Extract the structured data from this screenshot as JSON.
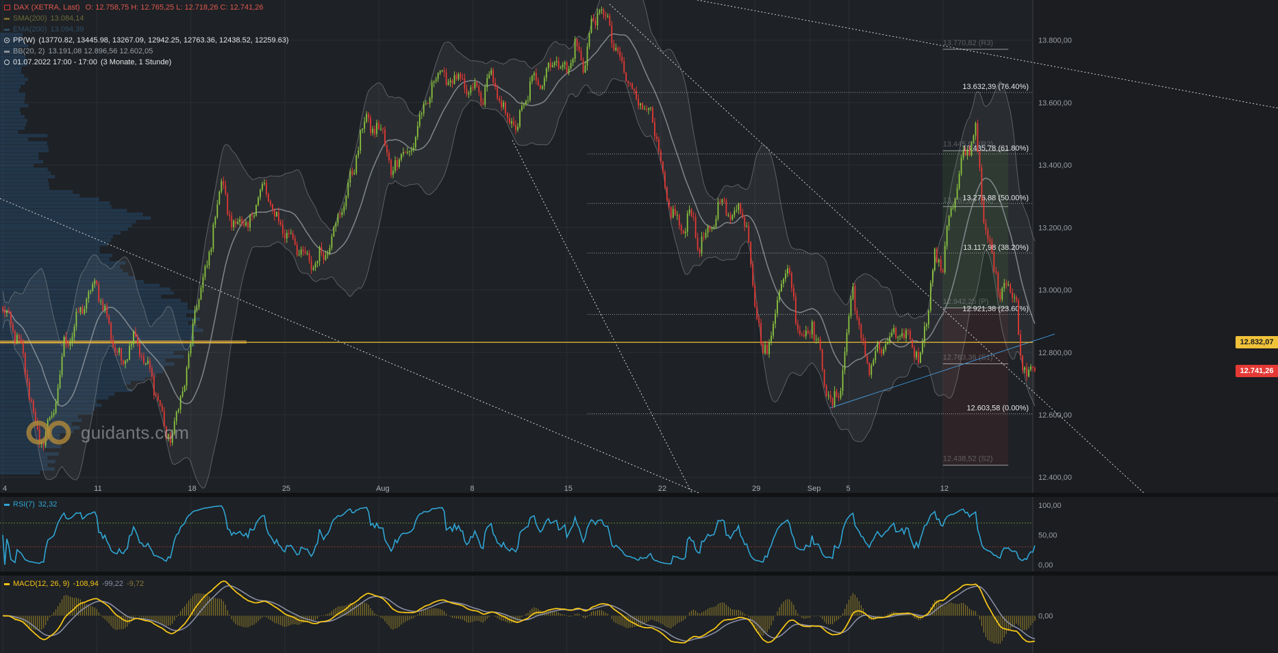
{
  "legend": {
    "title": "DAX (XETRA, Last)",
    "ohlc": "O: 12.758,75  H: 12.765,25  L: 12.718,26  C: 12.741,26",
    "sma_label": "SMA(200)",
    "sma_value": "13.084,14",
    "ema_label": "EMA(200)",
    "ema_value": "13.094,39",
    "pp_label": "PP(W)",
    "pp_values": "(13770.82, 13445.98, 13267.09, 12942.25, 12763.36, 12438.52, 12259.63)",
    "bb_label": "BB(20, 2)",
    "bb_values": "13.191,08  12.896,56  12.602,05",
    "range_label": "01.07.2022 17:00 - 17:00",
    "period_label": "(3 Monate, 1 Stunde)"
  },
  "watermark": "guidants.com",
  "colors": {
    "up": "#8cc63f",
    "down": "#e53935",
    "rsi": "#2fa6d6",
    "macd": "#f5c518",
    "signal": "#8a8fa6",
    "last_price_tag": "#e53935",
    "ref_price_tag": "#f0c23a"
  },
  "price_tags": {
    "ref": "12.832,07",
    "last": "12.741,26"
  },
  "chart_data": [
    {
      "type": "candlestick",
      "instrument": "DAX (XETRA, Last)",
      "interval": "1 Stunde",
      "ylim": [
        12350,
        13920
      ],
      "y_ticks": [
        "13.800,00",
        "13.600,00",
        "13.400,00",
        "13.200,00",
        "13.000,00",
        "12.800,00",
        "12.600,00",
        "12.400,00"
      ],
      "y_tick_values": [
        13800,
        13600,
        13400,
        13200,
        13000,
        12800,
        12600,
        12400
      ],
      "x_ticks": [
        "4",
        "11",
        "18",
        "25",
        "Aug",
        "8",
        "15",
        "22",
        "29",
        "Sep",
        "5",
        "12"
      ],
      "x_tick_index": [
        0,
        46,
        92,
        138,
        184,
        230,
        276,
        322,
        368,
        395,
        414,
        460
      ],
      "bars_visible": 506,
      "close_path": [
        [
          0,
          12930
        ],
        [
          5,
          12880
        ],
        [
          10,
          12780
        ],
        [
          14,
          12640
        ],
        [
          18,
          12500
        ],
        [
          22,
          12560
        ],
        [
          26,
          12640
        ],
        [
          30,
          12820
        ],
        [
          35,
          12880
        ],
        [
          40,
          12960
        ],
        [
          46,
          13020
        ],
        [
          52,
          12880
        ],
        [
          58,
          12760
        ],
        [
          64,
          12860
        ],
        [
          70,
          12760
        ],
        [
          76,
          12660
        ],
        [
          80,
          12520
        ],
        [
          84,
          12560
        ],
        [
          88,
          12680
        ],
        [
          92,
          12820
        ],
        [
          96,
          13000
        ],
        [
          100,
          13060
        ],
        [
          104,
          13260
        ],
        [
          108,
          13340
        ],
        [
          112,
          13200
        ],
        [
          116,
          13230
        ],
        [
          120,
          13180
        ],
        [
          124,
          13300
        ],
        [
          128,
          13320
        ],
        [
          132,
          13260
        ],
        [
          136,
          13200
        ],
        [
          140,
          13180
        ],
        [
          146,
          13120
        ],
        [
          150,
          13080
        ],
        [
          154,
          13100
        ],
        [
          158,
          13120
        ],
        [
          162,
          13200
        ],
        [
          166,
          13260
        ],
        [
          170,
          13350
        ],
        [
          174,
          13460
        ],
        [
          178,
          13560
        ],
        [
          182,
          13500
        ],
        [
          186,
          13520
        ],
        [
          190,
          13360
        ],
        [
          194,
          13450
        ],
        [
          198,
          13420
        ],
        [
          202,
          13500
        ],
        [
          206,
          13580
        ],
        [
          210,
          13640
        ],
        [
          214,
          13720
        ],
        [
          218,
          13650
        ],
        [
          222,
          13700
        ],
        [
          226,
          13620
        ],
        [
          230,
          13660
        ],
        [
          234,
          13600
        ],
        [
          238,
          13700
        ],
        [
          242,
          13620
        ],
        [
          246,
          13560
        ],
        [
          252,
          13520
        ],
        [
          258,
          13660
        ],
        [
          264,
          13680
        ],
        [
          270,
          13740
        ],
        [
          276,
          13700
        ],
        [
          280,
          13780
        ],
        [
          284,
          13720
        ],
        [
          288,
          13840
        ],
        [
          292,
          13900
        ],
        [
          296,
          13860
        ],
        [
          300,
          13760
        ],
        [
          304,
          13700
        ],
        [
          308,
          13640
        ],
        [
          312,
          13600
        ],
        [
          316,
          13580
        ],
        [
          320,
          13480
        ],
        [
          324,
          13300
        ],
        [
          328,
          13250
        ],
        [
          332,
          13180
        ],
        [
          336,
          13260
        ],
        [
          340,
          13150
        ],
        [
          344,
          13160
        ],
        [
          348,
          13220
        ],
        [
          352,
          13300
        ],
        [
          356,
          13220
        ],
        [
          360,
          13280
        ],
        [
          364,
          13200
        ],
        [
          368,
          12980
        ],
        [
          372,
          12780
        ],
        [
          376,
          12860
        ],
        [
          380,
          13000
        ],
        [
          384,
          13080
        ],
        [
          388,
          12920
        ],
        [
          392,
          12840
        ],
        [
          396,
          12900
        ],
        [
          400,
          12780
        ],
        [
          404,
          12660
        ],
        [
          406,
          12620
        ],
        [
          410,
          12700
        ],
        [
          414,
          12900
        ],
        [
          416,
          13020
        ],
        [
          420,
          12820
        ],
        [
          424,
          12760
        ],
        [
          428,
          12800
        ],
        [
          432,
          12820
        ],
        [
          436,
          12860
        ],
        [
          440,
          12840
        ],
        [
          444,
          12860
        ],
        [
          448,
          12760
        ],
        [
          452,
          12920
        ],
        [
          456,
          13100
        ],
        [
          460,
          13080
        ],
        [
          462,
          13200
        ],
        [
          466,
          13300
        ],
        [
          470,
          13420
        ],
        [
          474,
          13480
        ],
        [
          476,
          13520
        ],
        [
          480,
          13220
        ],
        [
          484,
          13100
        ],
        [
          488,
          13000
        ],
        [
          492,
          13020
        ],
        [
          496,
          12960
        ],
        [
          498,
          12760
        ],
        [
          502,
          12760
        ],
        [
          506,
          12741
        ]
      ],
      "pivot_levels": [
        {
          "label": "13.770,82 (R3)",
          "value": 13770.82
        },
        {
          "label": "13.445,98 (R2)",
          "value": 13445.98
        },
        {
          "label": "13.267,09 (R1)",
          "value": 13267.09
        },
        {
          "label": "12.942,25 (P)",
          "value": 12942.25
        },
        {
          "label": "12.763,36 (S1)",
          "value": 12763.36
        },
        {
          "label": "12.438,52 (S2)",
          "value": 12438.52
        }
      ],
      "fib_levels": [
        {
          "label": "13.632,39 (76.40%)",
          "value": 13632.39
        },
        {
          "label": "13.435,78 (61.80%)",
          "value": 13435.78
        },
        {
          "label": "13.276,88 (50.00%)",
          "value": 13276.88
        },
        {
          "label": "13.117,98 (38.20%)",
          "value": 13117.98
        },
        {
          "label": "12.921,38 (23.60%)",
          "value": 12921.38
        },
        {
          "label": "12.603,58 (0.00%)",
          "value": 12603.58
        }
      ],
      "ref_price": 12832.07,
      "last_price": 12741.26
    },
    {
      "type": "line",
      "name": "RSI(7)",
      "label": "RSI(7)",
      "value_label": "32,32",
      "ylim": [
        0,
        100
      ],
      "y_ticks": [
        "100,00",
        "50,00",
        "0,00"
      ],
      "y_tick_values": [
        100,
        50,
        0
      ],
      "overbought": 70,
      "oversold": 30
    },
    {
      "type": "line",
      "name": "MACD(12, 26, 9)",
      "label": "MACD(12, 26, 9)",
      "value_label": "-108,94",
      "signal_label": "-99,22",
      "hist_label": "-9,72",
      "y_ticks": [
        "0,00"
      ],
      "y_tick_values": [
        0
      ]
    }
  ]
}
